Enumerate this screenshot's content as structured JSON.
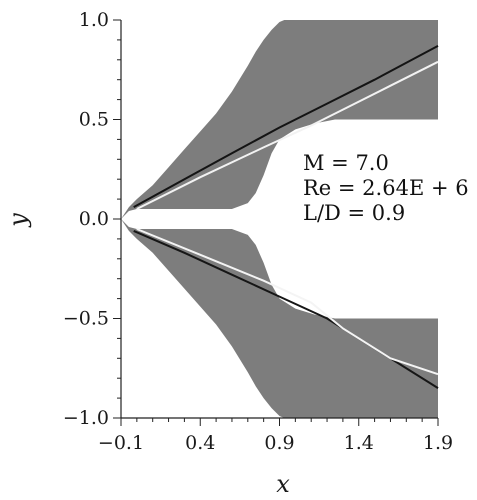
{
  "chart_data": {
    "type": "field-plot",
    "title": "",
    "xlabel": "x",
    "ylabel": "y",
    "xlim": [
      -0.1,
      1.9
    ],
    "ylim": [
      -1.0,
      1.0
    ],
    "x_ticks": [
      -0.1,
      0.4,
      0.9,
      1.4,
      1.9
    ],
    "x_tick_labels": [
      "−0.1",
      "0.4",
      "0.9",
      "1.4",
      "1.9"
    ],
    "y_ticks": [
      1.0,
      0.5,
      0.0,
      -0.5,
      -1.0
    ],
    "y_tick_labels": [
      "1.0",
      "0.5",
      "0.0",
      "−0.5",
      "−1.0"
    ],
    "annotations": [
      "M = 7.0",
      "Re = 2.64E + 6",
      "L/D = 0.9"
    ],
    "regions": {
      "fill_color": "#7d7d7d",
      "upper_outer": [
        [
          -0.1,
          0.0
        ],
        [
          -0.05,
          0.06
        ],
        [
          0.0,
          0.1
        ],
        [
          0.1,
          0.17
        ],
        [
          0.2,
          0.26
        ],
        [
          0.3,
          0.35
        ],
        [
          0.4,
          0.44
        ],
        [
          0.5,
          0.53
        ],
        [
          0.6,
          0.64
        ],
        [
          0.7,
          0.77
        ],
        [
          0.75,
          0.84
        ],
        [
          0.8,
          0.9
        ],
        [
          0.85,
          0.95
        ],
        [
          0.9,
          0.99
        ],
        [
          0.93,
          1.0
        ],
        [
          1.9,
          1.0
        ]
      ],
      "upper_inner": [
        [
          1.9,
          0.5
        ],
        [
          1.25,
          0.5
        ],
        [
          1.12,
          0.48
        ],
        [
          1.0,
          0.45
        ],
        [
          0.9,
          0.4
        ],
        [
          0.85,
          0.33
        ],
        [
          0.8,
          0.22
        ],
        [
          0.75,
          0.13
        ],
        [
          0.7,
          0.08
        ],
        [
          0.6,
          0.05
        ],
        [
          0.4,
          0.05
        ],
        [
          0.1,
          0.05
        ],
        [
          0.0,
          0.05
        ],
        [
          -0.05,
          0.04
        ],
        [
          -0.1,
          0.0
        ]
      ],
      "lower_outer": [
        [
          -0.1,
          0.0
        ],
        [
          -0.05,
          -0.06
        ],
        [
          0.0,
          -0.1
        ],
        [
          0.1,
          -0.17
        ],
        [
          0.2,
          -0.26
        ],
        [
          0.3,
          -0.35
        ],
        [
          0.4,
          -0.44
        ],
        [
          0.5,
          -0.53
        ],
        [
          0.6,
          -0.64
        ],
        [
          0.7,
          -0.77
        ],
        [
          0.75,
          -0.84
        ],
        [
          0.8,
          -0.9
        ],
        [
          0.85,
          -0.95
        ],
        [
          0.9,
          -0.99
        ],
        [
          0.93,
          -1.0
        ],
        [
          1.9,
          -1.0
        ]
      ],
      "lower_inner": [
        [
          1.9,
          -0.5
        ],
        [
          1.25,
          -0.5
        ],
        [
          1.12,
          -0.48
        ],
        [
          1.0,
          -0.45
        ],
        [
          0.9,
          -0.4
        ],
        [
          0.85,
          -0.33
        ],
        [
          0.8,
          -0.22
        ],
        [
          0.75,
          -0.13
        ],
        [
          0.7,
          -0.08
        ],
        [
          0.6,
          -0.05
        ],
        [
          0.4,
          -0.05
        ],
        [
          0.1,
          -0.05
        ],
        [
          0.0,
          -0.05
        ],
        [
          -0.05,
          -0.04
        ],
        [
          -0.1,
          0.0
        ]
      ]
    },
    "shock_lines": [
      {
        "color": "#141414",
        "points": [
          [
            -0.02,
            0.06
          ],
          [
            0.3,
            0.2
          ],
          [
            0.6,
            0.33
          ],
          [
            0.9,
            0.46
          ],
          [
            1.2,
            0.58
          ],
          [
            1.5,
            0.7
          ],
          [
            1.9,
            0.87
          ]
        ]
      },
      {
        "color": "#f2f2f2",
        "points": [
          [
            0.0,
            0.05
          ],
          [
            0.4,
            0.21
          ],
          [
            0.8,
            0.36
          ],
          [
            1.1,
            0.47
          ],
          [
            1.3,
            0.55
          ],
          [
            1.6,
            0.67
          ],
          [
            1.9,
            0.79
          ]
        ]
      },
      {
        "color": "#161616",
        "points": [
          [
            -0.02,
            -0.06
          ],
          [
            0.3,
            -0.17
          ],
          [
            0.6,
            -0.28
          ],
          [
            0.9,
            -0.39
          ],
          [
            1.2,
            -0.5
          ],
          [
            1.5,
            -0.65
          ],
          [
            1.9,
            -0.85
          ]
        ]
      },
      {
        "color": "#f4f4f4",
        "points": [
          [
            0.0,
            -0.05
          ],
          [
            0.4,
            -0.18
          ],
          [
            0.8,
            -0.31
          ],
          [
            1.1,
            -0.42
          ],
          [
            1.3,
            -0.55
          ],
          [
            1.6,
            -0.7
          ],
          [
            1.9,
            -0.78
          ]
        ]
      }
    ]
  }
}
